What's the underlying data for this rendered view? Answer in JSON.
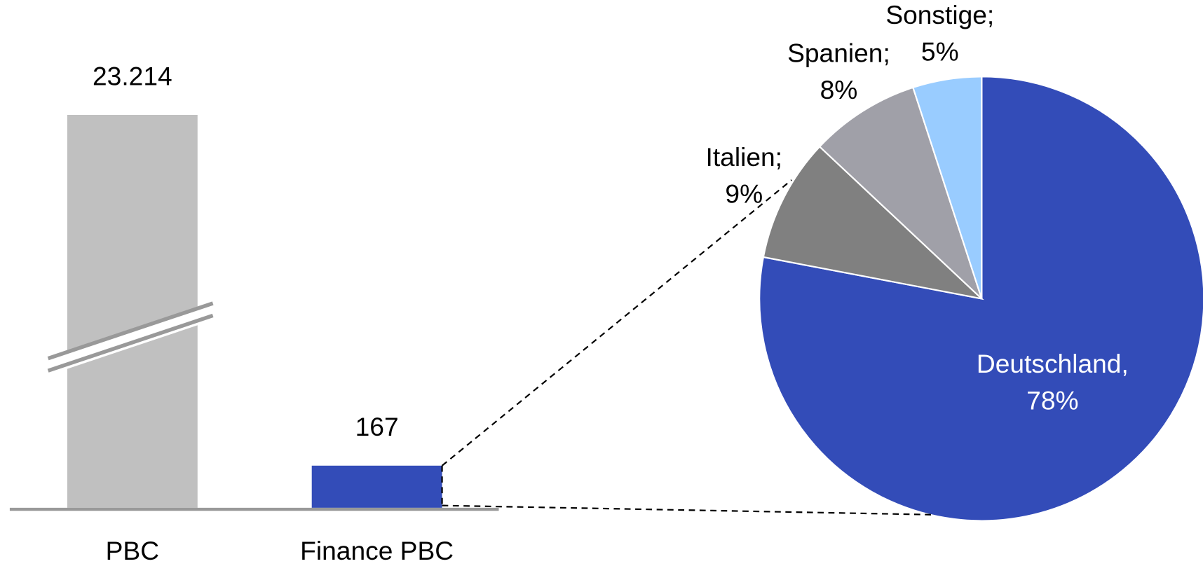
{
  "chart_data": [
    {
      "type": "bar",
      "categories": [
        "PBC",
        "Finance PBC"
      ],
      "values": [
        23214,
        167
      ],
      "value_labels": [
        "23.214",
        "167"
      ],
      "colors": [
        "#c0c0c0",
        "#334cb8"
      ],
      "broken_axis": true
    },
    {
      "type": "pie",
      "categories": [
        "Deutschland,",
        "Italien;",
        "Spanien;",
        "Sonstige;"
      ],
      "values": [
        78,
        9,
        8,
        5
      ],
      "value_labels": [
        "78%",
        "9%",
        "8%",
        "5%"
      ],
      "colors": [
        "#334cb8",
        "#808080",
        "#a0a0a8",
        "#99ccff"
      ]
    }
  ]
}
